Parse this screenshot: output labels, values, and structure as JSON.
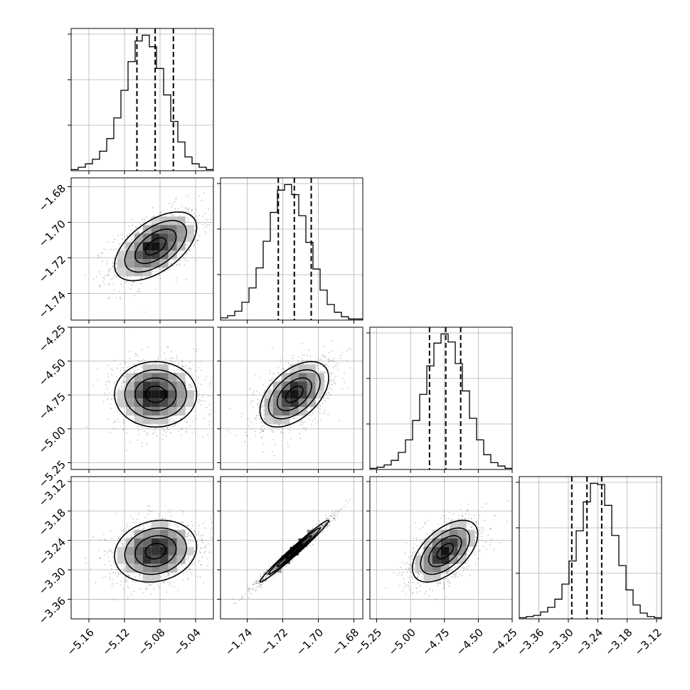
{
  "chart_data": {
    "type": "corner",
    "n_params": 4,
    "colors": {
      "contour": "#000000",
      "density_max": "#000000",
      "scatter": "#000000",
      "grid": "#b0b0b0"
    },
    "parameters": [
      {
        "range": [
          -5.18,
          -5.02
        ],
        "ticks": [
          -5.16,
          -5.12,
          -5.08,
          -5.04
        ],
        "tick_labels": [
          "−5.16",
          "−5.12",
          "−5.08",
          "−5.04"
        ],
        "quantiles": [
          -5.106,
          -5.0855,
          -5.065
        ],
        "mean": -5.085,
        "sd": 0.022
      },
      {
        "range": [
          -1.755,
          -1.675
        ],
        "ticks": [
          -1.74,
          -1.72,
          -1.7,
          -1.68
        ],
        "tick_labels": [
          "−1.74",
          "−1.72",
          "−1.70",
          "−1.68"
        ],
        "quantiles": [
          -1.7225,
          -1.7135,
          -1.704
        ],
        "mean": -1.7135,
        "sd": 0.0092
      },
      {
        "range": [
          -5.3,
          -4.25
        ],
        "ticks": [
          -5.25,
          -5.0,
          -4.75,
          -4.5,
          -4.25
        ],
        "tick_labels": [
          "−5.25",
          "−5.00",
          "−4.75",
          "−4.50",
          "−4.25"
        ],
        "quantiles": [
          -4.86,
          -4.74,
          -4.63
        ],
        "mean": -4.745,
        "sd": 0.115
      },
      {
        "range": [
          -3.4,
          -3.11
        ],
        "ticks": [
          -3.36,
          -3.3,
          -3.24,
          -3.18,
          -3.12
        ],
        "tick_labels": [
          "−3.36",
          "−3.30",
          "−3.24",
          "−3.18",
          "−3.12"
        ],
        "quantiles": [
          -3.293,
          -3.262,
          -3.232
        ],
        "mean": -3.262,
        "sd": 0.03
      }
    ],
    "correlations": {
      "1-0": 0.55,
      "2-0": 0.0,
      "2-1": 0.5,
      "3-0": 0.15,
      "3-1": 0.985,
      "3-2": 0.55
    },
    "histograms": {
      "bins": 20,
      "counts": [
        [
          1,
          3,
          6,
          10,
          17,
          28,
          46,
          70,
          95,
          113,
          118,
          108,
          89,
          66,
          43,
          25,
          12,
          6,
          3,
          1
        ],
        [
          2,
          4,
          8,
          16,
          29,
          47,
          71,
          97,
          117,
          122,
          113,
          94,
          70,
          46,
          27,
          14,
          7,
          3,
          1,
          1
        ],
        [
          1,
          2,
          4,
          8,
          15,
          26,
          43,
          66,
          91,
          111,
          119,
          112,
          93,
          69,
          45,
          26,
          13,
          6,
          3,
          1
        ],
        [
          1,
          2,
          3,
          6,
          10,
          17,
          30,
          50,
          76,
          101,
          117,
          116,
          98,
          72,
          46,
          25,
          12,
          5,
          2,
          1
        ]
      ]
    },
    "grid": true
  }
}
